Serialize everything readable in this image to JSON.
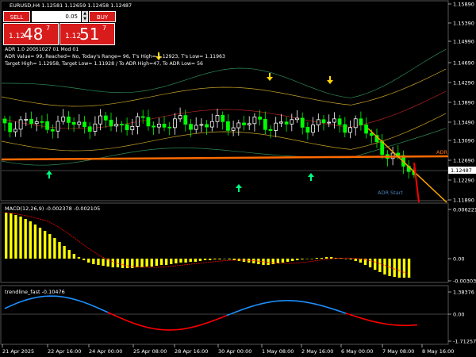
{
  "window": {
    "title": "EURUSD,H4  1.12581 1.12659 1.12458 1.12487"
  },
  "trade_panel": {
    "sell_label": "SELL",
    "buy_label": "BUY",
    "lot_value": "0.05",
    "bid": {
      "prefix": "1.12",
      "big": "48",
      "sup": "7"
    },
    "ask": {
      "prefix": "1.12",
      "big": "51",
      "sup": "7"
    }
  },
  "adr_info": {
    "line1": "ADR 1.0 20051027 01 Mod 01",
    "line2": "ADR Value= 99, Reached= No, Today's Range= 96, T's High= 1.12923, T's Low= 1.11963",
    "line3": "Target High= 1.12958, Target Low= 1.11928 / To ADR High=47, To ADR Low= 56"
  },
  "price_axis": {
    "labels": [
      "1.15890",
      "1.15390",
      "1.14990",
      "1.14690",
      "1.14290",
      "1.13890",
      "1.13490",
      "1.13090",
      "1.12690",
      "1.12290",
      "1.11890"
    ],
    "current": "1.12487"
  },
  "chart_labels": {
    "adr_tag": "ADR",
    "adr_start": "ADR Start"
  },
  "macd": {
    "title": "MACD(12,26,9) -0.002378 -0.002105",
    "axis": [
      "0.006221",
      "0.00",
      "-0.003033"
    ],
    "values": [
      0.0058,
      0.0057,
      0.0055,
      0.0053,
      0.005,
      0.0047,
      0.0043,
      0.0039,
      0.0035,
      0.0031,
      0.0026,
      0.0021,
      0.0016,
      0.0011,
      0.0006,
      0.0002,
      -0.0002,
      -0.0005,
      -0.0007,
      -0.0008,
      -0.0009,
      -0.001,
      -0.0011,
      -0.0011,
      -0.0012,
      -0.0012,
      -0.0012,
      -0.0011,
      -0.0011,
      -0.001,
      -0.001,
      -0.0009,
      -0.0008,
      -0.0008,
      -0.0007,
      -0.0006,
      -0.0005,
      -0.0005,
      -0.0004,
      -0.0004,
      -0.0003,
      -0.0002,
      -0.0002,
      -0.0001,
      -0.0001,
      0.0,
      -0.0001,
      -0.0002,
      -0.0003,
      -0.0004,
      -0.0005,
      -0.0006,
      -0.0007,
      -0.0008,
      -0.0008,
      -0.0007,
      -0.0006,
      -0.0005,
      -0.0004,
      -0.0003,
      -0.0002,
      -0.0001,
      0.0,
      0.0,
      0.0001,
      0.0001,
      0.0002,
      0.0002,
      0.0001,
      0.0001,
      0.0,
      -0.0001,
      -0.0003,
      -0.0005,
      -0.0008,
      -0.0011,
      -0.0014,
      -0.0017,
      -0.002,
      -0.0022,
      -0.0023,
      -0.0024,
      -0.0024,
      -0.0024
    ]
  },
  "trendline": {
    "title": "trendline_fast -0.10476",
    "axis": [
      "1.38376",
      "0.00",
      "-1.71257"
    ]
  },
  "time_axis": {
    "labels": [
      "21 Apr 2025",
      "22 Apr 16:00",
      "24 Apr 00:00",
      "25 Apr 08:00",
      "28 Apr 16:00",
      "30 Apr 00:00",
      "1 May 08:00",
      "2 May 16:00",
      "6 May 00:00",
      "7 May 08:00",
      "8 May 16:00"
    ]
  },
  "colors": {
    "bull": "#ffffff",
    "bear": "#00ff00",
    "adr_line": "#ff6a00",
    "macd": "#ffff00",
    "signal": "#ff0000",
    "trend_up": "#1e90ff",
    "trend_down": "#ff0000"
  }
}
